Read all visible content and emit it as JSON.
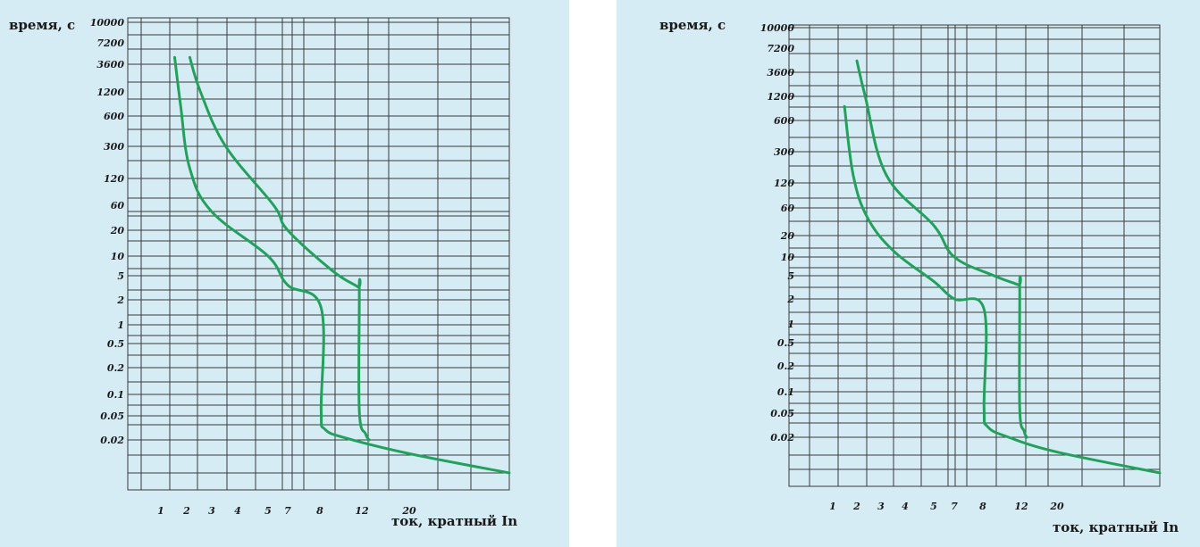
{
  "chart_data": [
    {
      "type": "line",
      "ylabel": "время, с",
      "xlabel": "ток, кратный In",
      "y_ticks": [
        "10000",
        "7200",
        "3600",
        "1200",
        "600",
        "300",
        "120",
        "60",
        "20",
        "10",
        "5",
        "2",
        "1",
        "0.5",
        "0.2",
        "0.1",
        "0.05",
        "0.02"
      ],
      "x_ticks": [
        "1",
        "2",
        "3",
        "4",
        "5",
        "7",
        "8",
        "12",
        "20"
      ],
      "grid": true,
      "series": [
        {
          "points": [
            [
              1.45,
              4500
            ],
            [
              1.7,
              800
            ],
            [
              2.1,
              160
            ],
            [
              3.0,
              45
            ],
            [
              5.0,
              10
            ],
            [
              7.0,
              3.5
            ],
            [
              8.1,
              1.6
            ],
            [
              8.1,
              0.06
            ],
            [
              8.4,
              0.03
            ],
            [
              10.5,
              0.021
            ],
            [
              20,
              0.015
            ],
            [
              25,
              0.01
            ]
          ]
        },
        {
          "points": [
            [
              2.1,
              4500
            ],
            [
              2.5,
              1200
            ],
            [
              3.5,
              300
            ],
            [
              5.5,
              60
            ],
            [
              7.0,
              20
            ],
            [
              9.0,
              6
            ],
            [
              11.5,
              3.3
            ],
            [
              11.7,
              3.0
            ],
            [
              11.7,
              0.06
            ],
            [
              12.5,
              0.025
            ],
            [
              13.0,
              0.02
            ]
          ]
        }
      ]
    },
    {
      "type": "line",
      "ylabel": "время, с",
      "xlabel": "ток, кратный In",
      "y_ticks": [
        "10000",
        "7200",
        "3600",
        "1200",
        "600",
        "300",
        "120",
        "60",
        "20",
        "10",
        "5",
        "2",
        "1",
        "0.5",
        "0.2",
        "0.1",
        "0.05",
        "0.02"
      ],
      "x_ticks": [
        "1",
        "2",
        "3",
        "4",
        "5",
        "7",
        "8",
        "12",
        "20"
      ],
      "grid": true,
      "series": [
        {
          "points": [
            [
              1.4,
              900
            ],
            [
              1.8,
              150
            ],
            [
              2.4,
              40
            ],
            [
              3.5,
              12
            ],
            [
              5.0,
              4
            ],
            [
              7.0,
              2
            ],
            [
              8.1,
              1.5
            ],
            [
              8.1,
              0.06
            ],
            [
              8.4,
              0.03
            ],
            [
              10.5,
              0.02
            ],
            [
              20,
              0.015
            ],
            [
              25,
              0.01
            ]
          ]
        },
        {
          "points": [
            [
              2.0,
              5000
            ],
            [
              2.3,
              1200
            ],
            [
              3.2,
              150
            ],
            [
              5.0,
              30
            ],
            [
              7.0,
              10
            ],
            [
              9.0,
              5
            ],
            [
              11.6,
              3.5
            ],
            [
              11.8,
              3.2
            ],
            [
              11.8,
              0.06
            ],
            [
              12.5,
              0.025
            ],
            [
              13.0,
              0.02
            ]
          ]
        }
      ]
    }
  ]
}
